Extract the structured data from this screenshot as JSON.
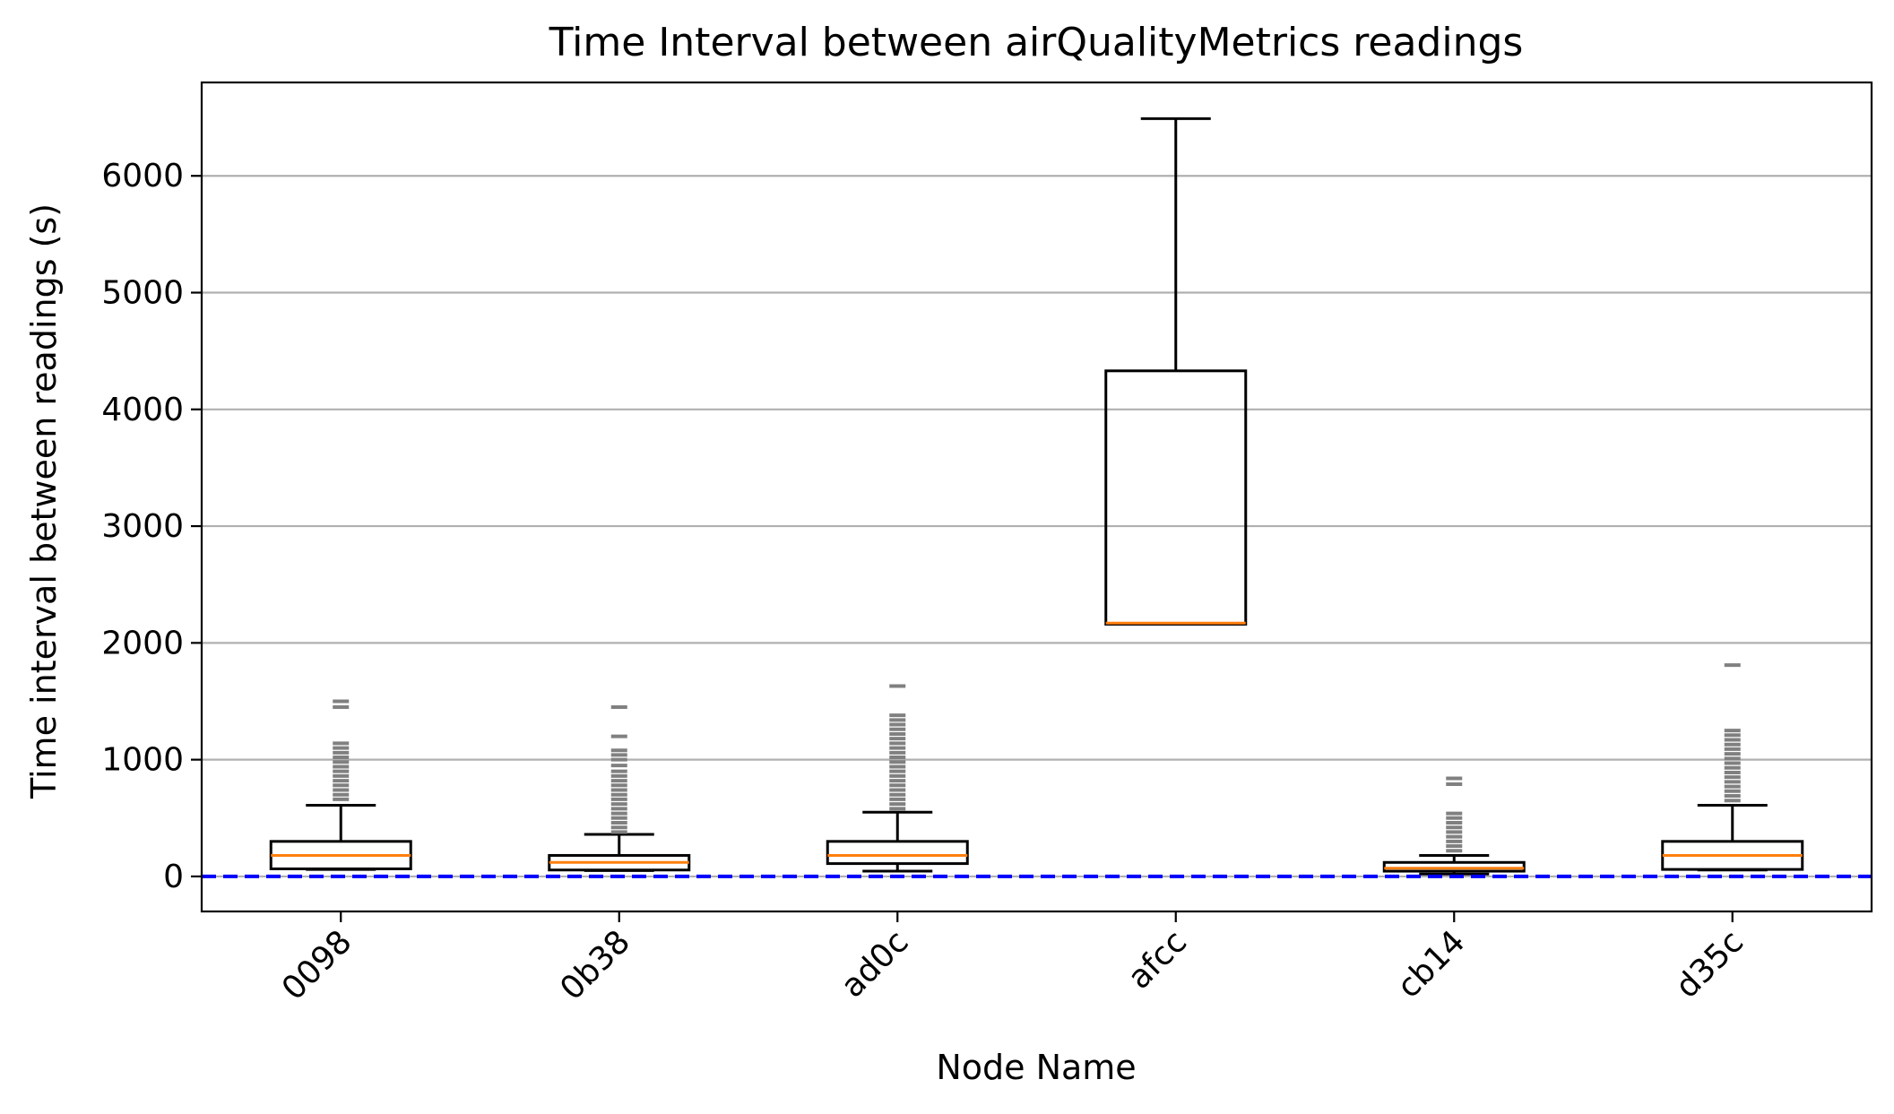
{
  "chart_data": {
    "type": "box",
    "title": "Time Interval between airQualityMetrics readings",
    "xlabel": "Node Name",
    "ylabel": "Time interval between readings (s)",
    "ylim": [
      -300,
      6800
    ],
    "yticks": [
      0,
      1000,
      2000,
      3000,
      4000,
      5000,
      6000
    ],
    "categories": [
      "0098",
      "0b38",
      "ad0c",
      "afcc",
      "cb14",
      "d35c"
    ],
    "grid": "horizontal",
    "reference_line": {
      "y": 0,
      "style": "dashed",
      "color": "#0000ff"
    },
    "colors": {
      "box": "#000000",
      "median": "#ff7f0e",
      "outlier": "#808080",
      "grid": "#b0b0b0"
    },
    "boxes": [
      {
        "name": "0098",
        "whisker_low": 60,
        "q1": 65,
        "median": 180,
        "q3": 300,
        "whisker_high": 610,
        "outliers": [
          660,
          700,
          740,
          780,
          820,
          860,
          900,
          940,
          980,
          1020,
          1060,
          1100,
          1140,
          1450,
          1500
        ]
      },
      {
        "name": "0b38",
        "whisker_low": 50,
        "q1": 55,
        "median": 120,
        "q3": 180,
        "whisker_high": 360,
        "outliers": [
          380,
          420,
          460,
          500,
          540,
          580,
          620,
          660,
          700,
          740,
          780,
          820,
          860,
          900,
          950,
          1000,
          1040,
          1080,
          1200,
          1450
        ]
      },
      {
        "name": "ad0c",
        "whisker_low": 45,
        "q1": 110,
        "median": 180,
        "q3": 300,
        "whisker_high": 550,
        "outliers": [
          580,
          620,
          660,
          700,
          740,
          780,
          820,
          860,
          900,
          940,
          980,
          1020,
          1060,
          1100,
          1140,
          1180,
          1220,
          1260,
          1300,
          1340,
          1380,
          1630
        ]
      },
      {
        "name": "afcc",
        "whisker_low": 2160,
        "q1": 2160,
        "median": 2170,
        "q3": 4330,
        "whisker_high": 6490,
        "outliers": []
      },
      {
        "name": "cb14",
        "whisker_low": 20,
        "q1": 45,
        "median": 70,
        "q3": 120,
        "whisker_high": 180,
        "outliers": [
          220,
          260,
          300,
          340,
          380,
          420,
          460,
          500,
          540,
          790,
          840
        ]
      },
      {
        "name": "d35c",
        "whisker_low": 55,
        "q1": 60,
        "median": 180,
        "q3": 300,
        "whisker_high": 610,
        "outliers": [
          650,
          690,
          730,
          770,
          810,
          850,
          890,
          930,
          970,
          1010,
          1050,
          1090,
          1130,
          1170,
          1210,
          1250,
          1810
        ]
      }
    ]
  }
}
